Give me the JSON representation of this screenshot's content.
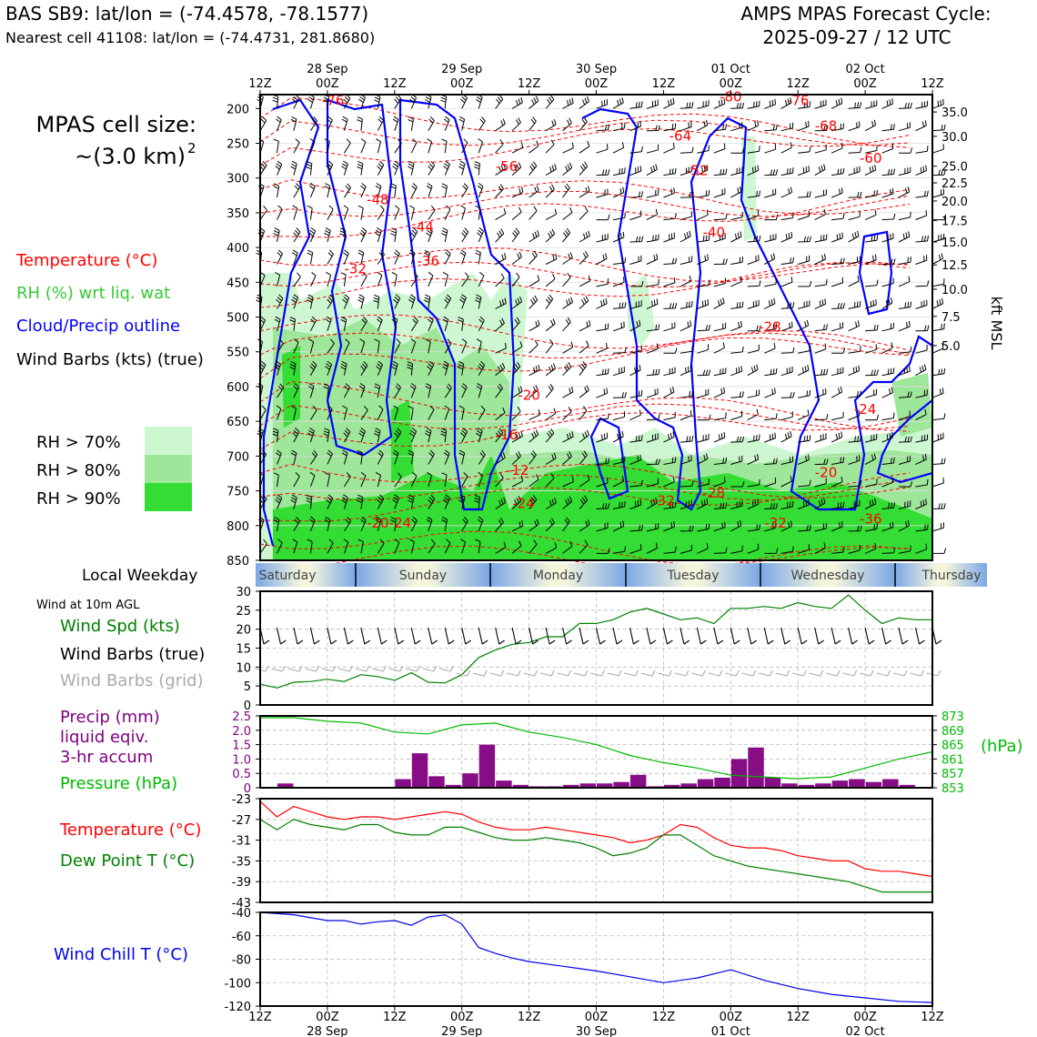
{
  "header": {
    "station_line": "BAS SB9: lat/lon = (-74.4578, -78.1577)",
    "cell_line": "Nearest cell 41108: lat/lon = (-74.4731, 281.8680)",
    "cycle_label": "AMPS MPAS Forecast Cycle:",
    "cycle_time": "2025-09-27 / 12 UTC"
  },
  "left_legend": {
    "cell_size_label": "MPAS cell size:",
    "cell_size_value": "~(3.0 km)",
    "cell_size_exp": "2",
    "temperature": "Temperature (°C)",
    "rh": "RH (%) wrt liq. wat",
    "cloud": "Cloud/Precip outline",
    "wind_barbs": "Wind Barbs (kts) (true)",
    "rh70": "RH > 70%",
    "rh80": "RH > 80%",
    "rh90": "RH > 90%"
  },
  "colors": {
    "rh70": "#ccf7d0",
    "rh80": "#9ee69a",
    "rh90": "#33dd33",
    "temperature": "#ff0000",
    "cloud": "#0000ff",
    "rh_text": "#33cc33",
    "precip": "#800080",
    "pressure": "#00bb00",
    "dew": "#008000",
    "wind_spd": "#008000",
    "grid_barb": "#aaaaaa",
    "chill": "#0000ee"
  },
  "time_axis": {
    "top_labels": [
      "12Z",
      "00Z",
      "12Z",
      "00Z",
      "12Z",
      "00Z",
      "12Z",
      "00Z",
      "12Z",
      "00Z",
      "12Z"
    ],
    "top_dates": [
      "28 Sep",
      "29 Sep",
      "30 Sep",
      "01 Oct",
      "02 Oct"
    ],
    "bottom_labels": [
      "12Z",
      "00Z",
      "12Z",
      "00Z",
      "12Z",
      "00Z",
      "12Z",
      "00Z",
      "12Z",
      "00Z",
      "12Z"
    ],
    "bottom_dates": [
      "28 Sep",
      "29 Sep",
      "30 Sep",
      "01 Oct",
      "02 Oct"
    ]
  },
  "weekday": {
    "label": "Local Weekday",
    "days": [
      "Saturday",
      "Sunday",
      "Monday",
      "Tuesday",
      "Wednesday",
      "Thursday"
    ]
  },
  "panels": {
    "wind": {
      "caption": "Wind at 10m AGL",
      "spd_label": "Wind Spd (kts)",
      "barb_true_label": "Wind Barbs (true)",
      "barb_grid_label": "Wind Barbs (grid)"
    },
    "precip": {
      "precip_label_1": "Precip (mm)",
      "precip_label_2": "liquid eqiv.",
      "precip_label_3": "3-hr accum",
      "pressure_label": "Pressure (hPa)",
      "hpa_label": "(hPa)"
    },
    "temp": {
      "temp_label": "Temperature (°C)",
      "dew_label": "Dew Point T (°C)"
    },
    "chill": {
      "label": "Wind Chill T (°C)"
    }
  },
  "chart_data": [
    {
      "type": "heatmap",
      "name": "cross-section",
      "xlim_hours": [
        0,
        120
      ],
      "ylim_hpa": [
        850,
        180
      ],
      "y_ticks_hpa": [
        200,
        250,
        300,
        350,
        400,
        450,
        500,
        550,
        600,
        650,
        700,
        750,
        800,
        850
      ],
      "right_axis_label": "kft MSL",
      "right_ticks": [
        {
          "label": "35.0",
          "hpa": 205
        },
        {
          "label": "30.0",
          "hpa": 240
        },
        {
          "label": "25.0",
          "hpa": 283
        },
        {
          "label": "22.5",
          "hpa": 307
        },
        {
          "label": "20.0",
          "hpa": 333
        },
        {
          "label": "17.5",
          "hpa": 361
        },
        {
          "label": "15.0",
          "hpa": 392
        },
        {
          "label": "12.5",
          "hpa": 425
        },
        {
          "label": "10.0",
          "hpa": 460
        },
        {
          "label": "7.5",
          "hpa": 499
        },
        {
          "label": "5.0",
          "hpa": 541
        }
      ],
      "temperature_labels": [
        {
          "text": "-76",
          "t": 13,
          "p": 195
        },
        {
          "text": "-80",
          "t": 84,
          "p": 190
        },
        {
          "text": "-76",
          "t": 96,
          "p": 195
        },
        {
          "text": "-68",
          "t": 101,
          "p": 232
        },
        {
          "text": "-64",
          "t": 75,
          "p": 246
        },
        {
          "text": "-60",
          "t": 109,
          "p": 278
        },
        {
          "text": "-56",
          "t": 44,
          "p": 290
        },
        {
          "text": "-52",
          "t": 78,
          "p": 296
        },
        {
          "text": "-48",
          "t": 21,
          "p": 338
        },
        {
          "text": "-44",
          "t": 29,
          "p": 377
        },
        {
          "text": "-40",
          "t": 81,
          "p": 385
        },
        {
          "text": "-36",
          "t": 30,
          "p": 426
        },
        {
          "text": "-32",
          "t": 17,
          "p": 437
        },
        {
          "text": "-28",
          "t": 91,
          "p": 521
        },
        {
          "text": "-24",
          "t": 108,
          "p": 639
        },
        {
          "text": "-20",
          "t": 48,
          "p": 619
        },
        {
          "text": "-16",
          "t": 44,
          "p": 676
        },
        {
          "text": "-12",
          "t": 46,
          "p": 727
        },
        {
          "text": "-20",
          "t": 101,
          "p": 730
        },
        {
          "text": "-28",
          "t": 81,
          "p": 760
        },
        {
          "text": "-32",
          "t": 72,
          "p": 771
        },
        {
          "text": "-24",
          "t": 47,
          "p": 775
        },
        {
          "text": "-32",
          "t": 92,
          "p": 803
        },
        {
          "text": "-36",
          "t": 109,
          "p": 797
        },
        {
          "text": "-20",
          "t": 21,
          "p": 803
        },
        {
          "text": "-24",
          "t": 25,
          "p": 803
        }
      ]
    },
    {
      "type": "line",
      "name": "wind-speed",
      "x_hours": [
        0,
        3,
        6,
        9,
        12,
        15,
        18,
        21,
        24,
        27,
        30,
        33,
        36,
        39,
        42,
        45,
        48,
        51,
        54,
        57,
        60,
        63,
        66,
        69,
        72,
        75,
        78,
        81,
        84,
        87,
        90,
        93,
        96,
        99,
        102,
        105,
        108,
        111,
        114,
        117,
        120
      ],
      "values": [
        5.5,
        4.5,
        6,
        6.2,
        6.8,
        6.2,
        8,
        7.5,
        6.5,
        8.5,
        6,
        5.8,
        8,
        12.5,
        14.5,
        16,
        16.5,
        18,
        18,
        21.5,
        21.5,
        22.5,
        24.5,
        25.5,
        24,
        22.5,
        23,
        21.5,
        25.5,
        25.5,
        26,
        25.5,
        27,
        26,
        25.5,
        29,
        25,
        21.5,
        23,
        22.5,
        22.5
      ],
      "ylim": [
        0,
        30
      ],
      "yticks": [
        0,
        5,
        10,
        15,
        20,
        25,
        30
      ]
    },
    {
      "type": "bar",
      "name": "precip",
      "x_hours": [
        0,
        3,
        6,
        9,
        12,
        15,
        18,
        21,
        24,
        27,
        30,
        33,
        36,
        39,
        42,
        45,
        48,
        51,
        54,
        57,
        60,
        63,
        66,
        69,
        72,
        75,
        78,
        81,
        84,
        87,
        90,
        93,
        96,
        99,
        102,
        105,
        108,
        111,
        114,
        117
      ],
      "values": [
        0,
        0.15,
        0,
        0,
        0,
        0,
        0,
        0,
        0.3,
        1.2,
        0.4,
        0.1,
        0.5,
        1.5,
        0.25,
        0.1,
        0.05,
        0.05,
        0.1,
        0.15,
        0.15,
        0.2,
        0.45,
        0.05,
        0.1,
        0.15,
        0.3,
        0.35,
        1.0,
        1.4,
        0.35,
        0.15,
        0.1,
        0.15,
        0.25,
        0.3,
        0.2,
        0.3,
        0.1,
        0
      ],
      "ylim": [
        0,
        2.5
      ],
      "yticks": [
        0,
        0.5,
        1.0,
        1.5,
        2.0,
        2.5
      ],
      "ytick_labels": [
        "0",
        "0.5",
        "1.0",
        "1.5",
        "2.0",
        "2.5"
      ]
    },
    {
      "type": "line",
      "name": "pressure",
      "x_hours": [
        0,
        6,
        12,
        18,
        24,
        30,
        36,
        42,
        48,
        54,
        60,
        66,
        72,
        78,
        84,
        90,
        96,
        102,
        108,
        114,
        120
      ],
      "values": [
        872.5,
        872.5,
        871.5,
        871.0,
        868.5,
        868.0,
        870.5,
        871.0,
        868.5,
        867.0,
        865.0,
        862.0,
        860.0,
        858.5,
        856.5,
        856.0,
        855.5,
        856.0,
        858.5,
        861.0,
        863.0
      ],
      "ylim": [
        853,
        873
      ],
      "yticks": [
        853,
        857,
        861,
        865,
        869,
        873
      ]
    },
    {
      "type": "line",
      "name": "temperature-dewpoint",
      "x_hours": [
        0,
        3,
        6,
        9,
        12,
        15,
        18,
        21,
        24,
        27,
        30,
        33,
        36,
        39,
        42,
        45,
        48,
        51,
        54,
        57,
        60,
        63,
        66,
        69,
        72,
        75,
        78,
        81,
        84,
        87,
        90,
        93,
        96,
        99,
        102,
        105,
        108,
        111,
        114,
        117,
        120
      ],
      "series": [
        {
          "name": "Temperature (°C)",
          "values": [
            -23.5,
            -26.5,
            -24.5,
            -25.5,
            -26.5,
            -27.0,
            -26.5,
            -26.5,
            -27.0,
            -26.5,
            -26.0,
            -25.5,
            -26.0,
            -27.5,
            -28.5,
            -29.0,
            -29.0,
            -28.5,
            -29.0,
            -29.5,
            -30.0,
            -30.5,
            -31.5,
            -31.0,
            -30.0,
            -28.0,
            -28.5,
            -30.5,
            -32.0,
            -32.5,
            -32.5,
            -33.0,
            -34.0,
            -34.5,
            -35.0,
            -35.0,
            -36.5,
            -37.0,
            -37.0,
            -37.5,
            -38.0
          ]
        },
        {
          "name": "Dew Point T (°C)",
          "values": [
            -27.0,
            -29.0,
            -27.0,
            -28.0,
            -28.5,
            -29.0,
            -28.0,
            -28.0,
            -29.5,
            -30.0,
            -30.0,
            -28.5,
            -28.5,
            -29.5,
            -30.5,
            -31.0,
            -31.0,
            -30.5,
            -31.0,
            -31.5,
            -32.5,
            -34.0,
            -33.5,
            -32.5,
            -30.0,
            -30.0,
            -32.0,
            -34.0,
            -35.0,
            -36.0,
            -36.5,
            -37.0,
            -37.5,
            -38.0,
            -38.5,
            -39.0,
            -40.0,
            -41.0,
            -41.0,
            -41.0,
            -41.0
          ]
        }
      ],
      "ylim": [
        -43,
        -23
      ],
      "yticks": [
        -43,
        -39,
        -35,
        -31,
        -27,
        -23
      ]
    },
    {
      "type": "line",
      "name": "wind-chill",
      "x_hours": [
        0,
        6,
        12,
        15,
        18,
        21,
        24,
        27,
        30,
        33,
        36,
        39,
        42,
        45,
        48,
        54,
        60,
        66,
        72,
        78,
        84,
        90,
        96,
        102,
        108,
        114,
        120
      ],
      "values": [
        -40,
        -42,
        -47,
        -47,
        -50,
        -48,
        -47,
        -51,
        -44,
        -42,
        -50,
        -70,
        -75,
        -79,
        -82,
        -86,
        -90,
        -95,
        -100,
        -96,
        -89,
        -98,
        -105,
        -110,
        -113,
        -116,
        -117
      ],
      "ylim": [
        -120,
        -40
      ],
      "yticks": [
        -120,
        -100,
        -80,
        -60,
        -40
      ]
    }
  ]
}
